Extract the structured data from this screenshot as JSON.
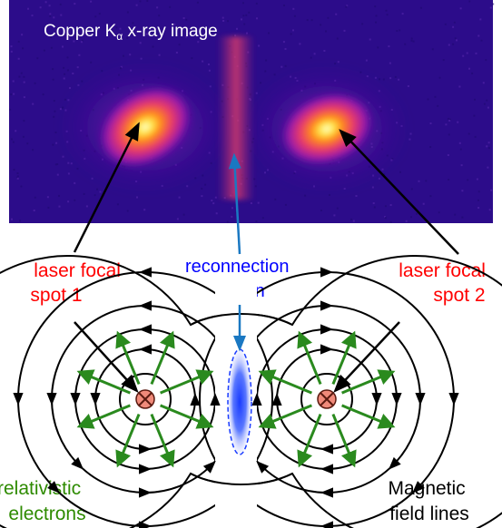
{
  "xray_image": {
    "title_main": "Copper K",
    "title_sub": "α",
    "title_tail": " x-ray image"
  },
  "labels": {
    "spot1_line1": "laser focal",
    "spot1_line2": "spot 1",
    "spot2_line1": "laser focal",
    "spot2_line2": "spot 2",
    "reconnection_line1": "reconnection",
    "reconnection_line2": "region",
    "electrons_line1": "relativistic",
    "electrons_line2": "electrons",
    "field_line1": "Magnetic",
    "field_line2": "field lines"
  },
  "colors": {
    "spot_label": "#ff0000",
    "reconnection_label": "#0000ff",
    "electrons_label": "#2e8b00",
    "electron_arrow": "#2a8a1e",
    "reconnection_arrow": "#1a78c2",
    "field_line": "#000000",
    "plasma_center": "#ffffcc",
    "plasma_outer": "#1a0066"
  }
}
